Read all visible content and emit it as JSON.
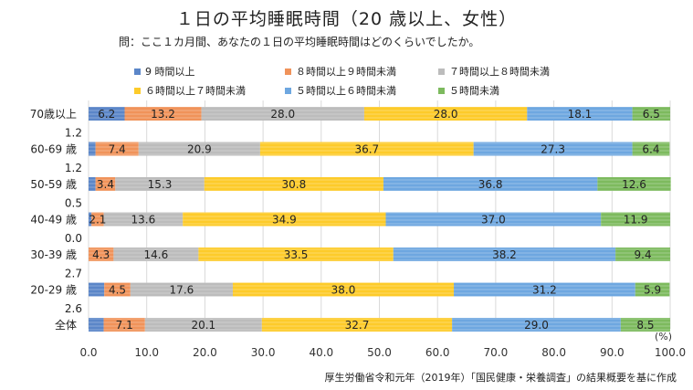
{
  "chart_data": {
    "type": "bar",
    "orientation": "horizontal",
    "stacked": true,
    "title": "１日の平均睡眠時間（20 歳以上、女性）",
    "subtitle": "問：ここ１カ月間、あなたの１日の平均睡眠時間はどのくらいでしたか。",
    "source": "厚生労働省令和元年（2019年）「国民健康・栄養調査」の結果概要を基に作成",
    "unit_label": "(%)",
    "xlim": [
      0,
      100
    ],
    "xticks": [
      "0.0",
      "10.0",
      "20.0",
      "30.0",
      "40.0",
      "50.0",
      "60.0",
      "70.0",
      "80.0",
      "90.0",
      "100.0"
    ],
    "legend_position": "top",
    "categories": [
      "70歳以上",
      "60-69 歳",
      "50-59 歳",
      "40-49 歳",
      "30-39 歳",
      "20-29 歳",
      "全体"
    ],
    "series": [
      {
        "name": "9 時間以上",
        "color": "#5b86c8",
        "values": [
          6.2,
          1.2,
          1.2,
          0.5,
          0.0,
          2.7,
          2.6
        ]
      },
      {
        "name": "８時間以上９時間未満",
        "color": "#f0935a",
        "values": [
          13.2,
          7.4,
          3.4,
          2.1,
          4.3,
          4.5,
          7.1
        ]
      },
      {
        "name": "７時間以上８時間未満",
        "color": "#bcbcbc",
        "values": [
          28.0,
          20.9,
          15.3,
          13.6,
          14.6,
          17.6,
          20.1
        ]
      },
      {
        "name": "６時間以上７時間未満",
        "color": "#fdcb2a",
        "values": [
          28.0,
          36.7,
          30.8,
          34.9,
          33.5,
          38.0,
          32.7
        ]
      },
      {
        "name": "５時間以上６時間未満",
        "color": "#6ea7e0",
        "values": [
          18.1,
          27.3,
          36.8,
          37.0,
          38.2,
          31.2,
          29.0
        ]
      },
      {
        "name": "５時間未満",
        "color": "#7dba5e",
        "values": [
          6.5,
          6.4,
          12.6,
          11.9,
          9.4,
          5.9,
          8.5
        ]
      }
    ],
    "label_texts": [
      [
        "6.2",
        "13.2",
        "28.0",
        "28.0",
        "18.1",
        "6.5"
      ],
      [
        "1.2",
        "7.4",
        "20.9",
        "36.7",
        "27.3",
        "6.4"
      ],
      [
        "1.2",
        "3.4",
        "15.3",
        "30.8",
        "36.8",
        "12.6"
      ],
      [
        "0.5",
        "2.1",
        "13.6",
        "34.9",
        "37.0",
        "11.9"
      ],
      [
        "0.0",
        "4.3",
        "14.6",
        "33.5",
        "38.2",
        "9.4"
      ],
      [
        "2.7",
        "4.5",
        "17.6",
        "38.0",
        "31.2",
        "5.9"
      ],
      [
        "2.6",
        "7.1",
        "20.1",
        "32.7",
        "29.0",
        "8.5"
      ]
    ]
  }
}
